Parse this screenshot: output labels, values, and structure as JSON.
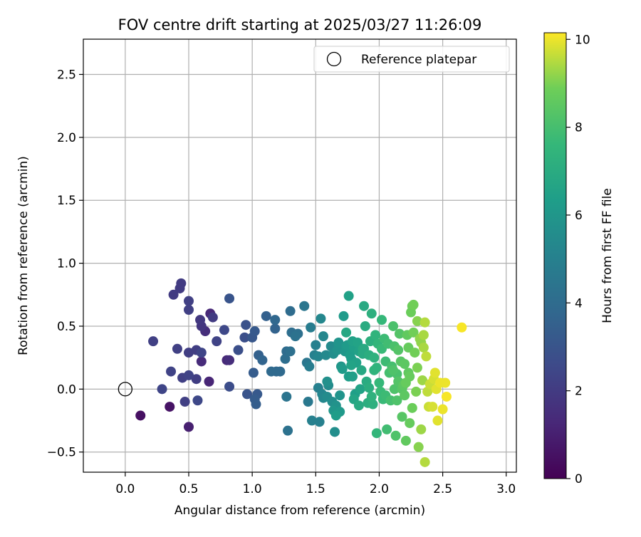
{
  "chart_data": {
    "type": "scatter",
    "title": "FOV centre drift starting at 2025/03/27 11:26:09",
    "xlabel": "Angular distance from reference (arcmin)",
    "ylabel": "Rotation from reference (arcmin)",
    "xlim": [
      -0.33,
      3.08
    ],
    "ylim": [
      -0.66,
      2.78
    ],
    "x_ticks": [
      0.0,
      0.5,
      1.0,
      1.5,
      2.0,
      2.5,
      3.0
    ],
    "x_tick_labels": [
      "0.0",
      "0.5",
      "1.0",
      "1.5",
      "2.0",
      "2.5",
      "3.0"
    ],
    "y_ticks": [
      -0.5,
      0.0,
      0.5,
      1.0,
      1.5,
      2.0,
      2.5
    ],
    "y_tick_labels": [
      "−0.5",
      "0.0",
      "0.5",
      "1.0",
      "1.5",
      "2.0",
      "2.5"
    ],
    "grid": true,
    "legend": {
      "position": "top-right",
      "entries": [
        {
          "label": "Reference platepar",
          "marker": "open-circle"
        }
      ]
    },
    "reference_point": {
      "x": 0.0,
      "y": 0.0
    },
    "colorbar": {
      "label": "Hours from first FF file",
      "colormap": "viridis",
      "range": [
        0,
        10.15
      ],
      "ticks": [
        0,
        2,
        4,
        6,
        8,
        10
      ],
      "tick_labels": [
        "0",
        "2",
        "4",
        "6",
        "8",
        "10"
      ]
    },
    "points": [
      {
        "x": 0.12,
        "y": -0.21,
        "t": 0.5
      },
      {
        "x": 0.35,
        "y": -0.14,
        "t": 0.6
      },
      {
        "x": 0.5,
        "y": -0.3,
        "t": 1.0
      },
      {
        "x": 0.66,
        "y": 0.06,
        "t": 1.2
      },
      {
        "x": 0.67,
        "y": 0.6,
        "t": 1.3
      },
      {
        "x": 0.6,
        "y": 0.22,
        "t": 1.4
      },
      {
        "x": 0.8,
        "y": 0.23,
        "t": 1.3
      },
      {
        "x": 0.82,
        "y": 0.23,
        "t": 1.5
      },
      {
        "x": 0.63,
        "y": 0.46,
        "t": 1.5
      },
      {
        "x": 0.6,
        "y": 0.5,
        "t": 1.8
      },
      {
        "x": 0.59,
        "y": 0.55,
        "t": 1.9
      },
      {
        "x": 0.69,
        "y": 0.57,
        "t": 2.0
      },
      {
        "x": 0.38,
        "y": 0.75,
        "t": 2.0
      },
      {
        "x": 0.43,
        "y": 0.8,
        "t": 2.0
      },
      {
        "x": 0.44,
        "y": 0.84,
        "t": 2.0
      },
      {
        "x": 0.5,
        "y": 0.7,
        "t": 2.2
      },
      {
        "x": 0.5,
        "y": 0.63,
        "t": 2.2
      },
      {
        "x": 0.22,
        "y": 0.38,
        "t": 2.2
      },
      {
        "x": 0.29,
        "y": 0.0,
        "t": 2.4
      },
      {
        "x": 0.36,
        "y": 0.14,
        "t": 2.3
      },
      {
        "x": 0.41,
        "y": 0.32,
        "t": 2.2
      },
      {
        "x": 0.45,
        "y": 0.09,
        "t": 2.2
      },
      {
        "x": 0.47,
        "y": -0.1,
        "t": 2.2
      },
      {
        "x": 0.5,
        "y": 0.11,
        "t": 2.3
      },
      {
        "x": 0.5,
        "y": 0.29,
        "t": 2.1
      },
      {
        "x": 0.56,
        "y": 0.31,
        "t": 2.1
      },
      {
        "x": 0.56,
        "y": 0.08,
        "t": 2.1
      },
      {
        "x": 0.57,
        "y": -0.09,
        "t": 2.5
      },
      {
        "x": 0.6,
        "y": 0.29,
        "t": 2.4
      },
      {
        "x": 0.72,
        "y": 0.38,
        "t": 2.3
      },
      {
        "x": 0.78,
        "y": 0.47,
        "t": 2.5
      },
      {
        "x": 0.82,
        "y": 0.02,
        "t": 2.7
      },
      {
        "x": 0.82,
        "y": 0.72,
        "t": 3.0
      },
      {
        "x": 0.89,
        "y": 0.31,
        "t": 2.8
      },
      {
        "x": 0.94,
        "y": 0.41,
        "t": 2.8
      },
      {
        "x": 0.95,
        "y": 0.51,
        "t": 2.9
      },
      {
        "x": 0.96,
        "y": -0.04,
        "t": 3.0
      },
      {
        "x": 1.0,
        "y": 0.41,
        "t": 3.1
      },
      {
        "x": 1.01,
        "y": 0.13,
        "t": 3.3
      },
      {
        "x": 1.02,
        "y": 0.46,
        "t": 3.2
      },
      {
        "x": 1.02,
        "y": -0.08,
        "t": 3.3
      },
      {
        "x": 1.03,
        "y": -0.12,
        "t": 3.4
      },
      {
        "x": 1.04,
        "y": -0.04,
        "t": 3.2
      },
      {
        "x": 1.05,
        "y": 0.27,
        "t": 3.5
      },
      {
        "x": 1.08,
        "y": 0.23,
        "t": 3.7
      },
      {
        "x": 1.11,
        "y": 0.58,
        "t": 3.5
      },
      {
        "x": 1.15,
        "y": 0.14,
        "t": 3.9
      },
      {
        "x": 1.18,
        "y": 0.48,
        "t": 3.6
      },
      {
        "x": 1.19,
        "y": 0.14,
        "t": 3.8
      },
      {
        "x": 1.22,
        "y": 0.14,
        "t": 3.9
      },
      {
        "x": 1.18,
        "y": 0.55,
        "t": 3.8
      },
      {
        "x": 1.26,
        "y": 0.24,
        "t": 4.1
      },
      {
        "x": 1.27,
        "y": 0.3,
        "t": 4.0
      },
      {
        "x": 1.27,
        "y": -0.06,
        "t": 4.4
      },
      {
        "x": 1.28,
        "y": -0.33,
        "t": 4.3
      },
      {
        "x": 1.3,
        "y": 0.62,
        "t": 4.0
      },
      {
        "x": 1.3,
        "y": 0.3,
        "t": 4.2
      },
      {
        "x": 1.31,
        "y": 0.45,
        "t": 4.1
      },
      {
        "x": 1.34,
        "y": 0.42,
        "t": 4.3
      },
      {
        "x": 1.36,
        "y": 0.44,
        "t": 4.2
      },
      {
        "x": 1.41,
        "y": 0.66,
        "t": 4.5
      },
      {
        "x": 1.43,
        "y": 0.21,
        "t": 4.5
      },
      {
        "x": 1.44,
        "y": -0.1,
        "t": 4.6
      },
      {
        "x": 1.45,
        "y": 0.18,
        "t": 4.8
      },
      {
        "x": 1.46,
        "y": 0.49,
        "t": 4.8
      },
      {
        "x": 1.47,
        "y": -0.25,
        "t": 5.0
      },
      {
        "x": 1.49,
        "y": 0.27,
        "t": 5.0
      },
      {
        "x": 1.5,
        "y": 0.35,
        "t": 5.0
      },
      {
        "x": 1.52,
        "y": 0.26,
        "t": 5.2
      },
      {
        "x": 1.52,
        "y": 0.01,
        "t": 5.0
      },
      {
        "x": 1.53,
        "y": -0.26,
        "t": 5.0
      },
      {
        "x": 1.54,
        "y": 0.56,
        "t": 5.3
      },
      {
        "x": 1.55,
        "y": -0.04,
        "t": 5.2
      },
      {
        "x": 1.56,
        "y": 0.42,
        "t": 5.3
      },
      {
        "x": 1.58,
        "y": 0.27,
        "t": 5.4
      },
      {
        "x": 1.59,
        "y": -0.06,
        "t": 5.5
      },
      {
        "x": 1.6,
        "y": 0.03,
        "t": 5.5
      },
      {
        "x": 1.62,
        "y": 0.34,
        "t": 5.5
      },
      {
        "x": 1.63,
        "y": -0.1,
        "t": 5.6
      },
      {
        "x": 1.64,
        "y": 0.28,
        "t": 5.6
      },
      {
        "x": 1.65,
        "y": -0.34,
        "t": 5.6
      },
      {
        "x": 1.66,
        "y": -0.13,
        "t": 5.8
      },
      {
        "x": 1.67,
        "y": 0.31,
        "t": 5.8
      },
      {
        "x": 1.68,
        "y": 0.36,
        "t": 5.9
      },
      {
        "x": 1.69,
        "y": -0.05,
        "t": 5.9
      },
      {
        "x": 1.7,
        "y": 0.18,
        "t": 6.0
      },
      {
        "x": 1.72,
        "y": 0.58,
        "t": 6.2
      },
      {
        "x": 1.73,
        "y": 0.3,
        "t": 6.0
      },
      {
        "x": 1.74,
        "y": 0.34,
        "t": 6.1
      },
      {
        "x": 1.75,
        "y": 0.35,
        "t": 6.2
      },
      {
        "x": 1.76,
        "y": 0.74,
        "t": 6.5
      },
      {
        "x": 1.77,
        "y": 0.27,
        "t": 6.3
      },
      {
        "x": 1.78,
        "y": 0.24,
        "t": 6.3
      },
      {
        "x": 1.79,
        "y": 0.1,
        "t": 6.4
      },
      {
        "x": 1.8,
        "y": 0.33,
        "t": 6.4
      },
      {
        "x": 1.81,
        "y": -0.04,
        "t": 6.4
      },
      {
        "x": 1.82,
        "y": 0.21,
        "t": 6.5
      },
      {
        "x": 1.83,
        "y": 0.37,
        "t": 6.6
      },
      {
        "x": 1.84,
        "y": 0.3,
        "t": 6.5
      },
      {
        "x": 1.85,
        "y": 0.0,
        "t": 6.6
      },
      {
        "x": 1.86,
        "y": 0.15,
        "t": 6.8
      },
      {
        "x": 1.87,
        "y": 0.32,
        "t": 6.8
      },
      {
        "x": 1.88,
        "y": 0.66,
        "t": 6.9
      },
      {
        "x": 1.89,
        "y": 0.5,
        "t": 7.0
      },
      {
        "x": 1.9,
        "y": 0.06,
        "t": 7.0
      },
      {
        "x": 1.91,
        "y": -0.11,
        "t": 7.1
      },
      {
        "x": 1.92,
        "y": 0.27,
        "t": 7.1
      },
      {
        "x": 1.93,
        "y": 0.38,
        "t": 7.2
      },
      {
        "x": 1.94,
        "y": 0.6,
        "t": 7.2
      },
      {
        "x": 1.95,
        "y": -0.12,
        "t": 7.2
      },
      {
        "x": 1.96,
        "y": 0.15,
        "t": 7.4
      },
      {
        "x": 1.97,
        "y": 0.43,
        "t": 7.4
      },
      {
        "x": 1.98,
        "y": -0.35,
        "t": 7.5
      },
      {
        "x": 1.99,
        "y": 0.36,
        "t": 7.5
      },
      {
        "x": 2.0,
        "y": 0.05,
        "t": 7.6
      },
      {
        "x": 2.01,
        "y": -0.02,
        "t": 7.7
      },
      {
        "x": 2.02,
        "y": 0.32,
        "t": 7.7
      },
      {
        "x": 2.04,
        "y": 0.4,
        "t": 7.8
      },
      {
        "x": 2.05,
        "y": -0.05,
        "t": 7.8
      },
      {
        "x": 2.06,
        "y": -0.32,
        "t": 7.9
      },
      {
        "x": 2.08,
        "y": 0.13,
        "t": 8.0
      },
      {
        "x": 2.1,
        "y": 0.18,
        "t": 8.0
      },
      {
        "x": 2.11,
        "y": 0.5,
        "t": 8.1
      },
      {
        "x": 2.12,
        "y": 0.34,
        "t": 8.1
      },
      {
        "x": 2.13,
        "y": -0.37,
        "t": 8.2
      },
      {
        "x": 2.14,
        "y": -0.09,
        "t": 8.2
      },
      {
        "x": 2.15,
        "y": 0.06,
        "t": 8.3
      },
      {
        "x": 2.16,
        "y": 0.44,
        "t": 8.3
      },
      {
        "x": 2.17,
        "y": 0.22,
        "t": 8.4
      },
      {
        "x": 2.18,
        "y": -0.22,
        "t": 8.4
      },
      {
        "x": 2.19,
        "y": 0.03,
        "t": 8.5
      },
      {
        "x": 2.2,
        "y": -0.05,
        "t": 8.5
      },
      {
        "x": 2.21,
        "y": -0.41,
        "t": 8.6
      },
      {
        "x": 2.22,
        "y": 0.43,
        "t": 8.6
      },
      {
        "x": 2.23,
        "y": 0.33,
        "t": 8.7
      },
      {
        "x": 2.24,
        "y": 0.1,
        "t": 8.7
      },
      {
        "x": 2.25,
        "y": 0.61,
        "t": 8.8
      },
      {
        "x": 2.26,
        "y": 0.66,
        "t": 8.8
      },
      {
        "x": 2.27,
        "y": 0.67,
        "t": 8.9
      },
      {
        "x": 2.28,
        "y": 0.29,
        "t": 8.9
      },
      {
        "x": 2.29,
        "y": -0.02,
        "t": 9.0
      },
      {
        "x": 2.3,
        "y": 0.54,
        "t": 9.1
      },
      {
        "x": 2.31,
        "y": -0.46,
        "t": 9.1
      },
      {
        "x": 2.32,
        "y": 0.4,
        "t": 9.2
      },
      {
        "x": 2.33,
        "y": 0.37,
        "t": 9.2
      },
      {
        "x": 2.34,
        "y": 0.07,
        "t": 9.3
      },
      {
        "x": 2.35,
        "y": 0.43,
        "t": 9.4
      },
      {
        "x": 2.36,
        "y": 0.53,
        "t": 9.5
      },
      {
        "x": 2.36,
        "y": -0.58,
        "t": 9.5
      },
      {
        "x": 2.37,
        "y": 0.26,
        "t": 9.6
      },
      {
        "x": 2.38,
        "y": -0.02,
        "t": 9.6
      },
      {
        "x": 2.39,
        "y": -0.14,
        "t": 9.7
      },
      {
        "x": 2.4,
        "y": 0.04,
        "t": 9.7
      },
      {
        "x": 2.42,
        "y": -0.14,
        "t": 9.8
      },
      {
        "x": 2.43,
        "y": 0.08,
        "t": 9.8
      },
      {
        "x": 2.44,
        "y": 0.13,
        "t": 9.9
      },
      {
        "x": 2.45,
        "y": 0.0,
        "t": 9.9
      },
      {
        "x": 2.46,
        "y": -0.25,
        "t": 9.9
      },
      {
        "x": 2.48,
        "y": 0.05,
        "t": 10.0
      },
      {
        "x": 2.5,
        "y": -0.16,
        "t": 10.0
      },
      {
        "x": 2.52,
        "y": 0.05,
        "t": 10.0
      },
      {
        "x": 2.53,
        "y": -0.06,
        "t": 10.1
      },
      {
        "x": 2.65,
        "y": 0.49,
        "t": 10.1
      },
      {
        "x": 2.23,
        "y": 0.13,
        "t": 8.6
      },
      {
        "x": 2.2,
        "y": 0.2,
        "t": 8.5
      },
      {
        "x": 2.11,
        "y": 0.15,
        "t": 8.2
      },
      {
        "x": 2.14,
        "y": 0.12,
        "t": 8.1
      },
      {
        "x": 1.96,
        "y": 0.25,
        "t": 7.3
      },
      {
        "x": 1.88,
        "y": 0.32,
        "t": 6.9
      },
      {
        "x": 1.79,
        "y": 0.38,
        "t": 6.5
      },
      {
        "x": 1.71,
        "y": 0.16,
        "t": 6.2
      },
      {
        "x": 1.66,
        "y": -0.21,
        "t": 6.3
      },
      {
        "x": 1.64,
        "y": -0.17,
        "t": 6.0
      },
      {
        "x": 1.56,
        "y": -0.07,
        "t": 5.3
      },
      {
        "x": 1.74,
        "y": 0.45,
        "t": 6.8
      },
      {
        "x": 1.8,
        "y": -0.08,
        "t": 6.7
      },
      {
        "x": 1.84,
        "y": -0.13,
        "t": 6.9
      },
      {
        "x": 1.94,
        "y": -0.06,
        "t": 7.3
      },
      {
        "x": 2.02,
        "y": 0.55,
        "t": 7.6
      },
      {
        "x": 2.07,
        "y": 0.36,
        "t": 7.9
      },
      {
        "x": 2.18,
        "y": 0.0,
        "t": 8.4
      },
      {
        "x": 2.26,
        "y": -0.15,
        "t": 8.8
      },
      {
        "x": 2.3,
        "y": 0.17,
        "t": 9.0
      },
      {
        "x": 2.27,
        "y": 0.45,
        "t": 8.9
      },
      {
        "x": 2.33,
        "y": -0.32,
        "t": 9.3
      },
      {
        "x": 2.21,
        "y": 0.05,
        "t": 8.7
      },
      {
        "x": 2.09,
        "y": -0.09,
        "t": 8.0
      },
      {
        "x": 1.98,
        "y": 0.17,
        "t": 7.4
      },
      {
        "x": 1.76,
        "y": 0.1,
        "t": 6.3
      },
      {
        "x": 1.69,
        "y": -0.18,
        "t": 6.1
      },
      {
        "x": 1.59,
        "y": 0.06,
        "t": 5.7
      },
      {
        "x": 1.68,
        "y": 0.37,
        "t": 5.9
      },
      {
        "x": 1.92,
        "y": 0.01,
        "t": 7.1
      },
      {
        "x": 2.03,
        "y": -0.08,
        "t": 7.7
      },
      {
        "x": 2.15,
        "y": 0.31,
        "t": 8.3
      },
      {
        "x": 2.24,
        "y": -0.27,
        "t": 8.7
      },
      {
        "x": 2.35,
        "y": 0.33,
        "t": 9.4
      },
      {
        "x": 2.05,
        "y": 0.22,
        "t": 7.8
      },
      {
        "x": 1.87,
        "y": 0.28,
        "t": 6.9
      },
      {
        "x": 1.78,
        "y": 0.19,
        "t": 6.6
      },
      {
        "x": 2.12,
        "y": 0.0,
        "t": 8.2
      }
    ]
  }
}
